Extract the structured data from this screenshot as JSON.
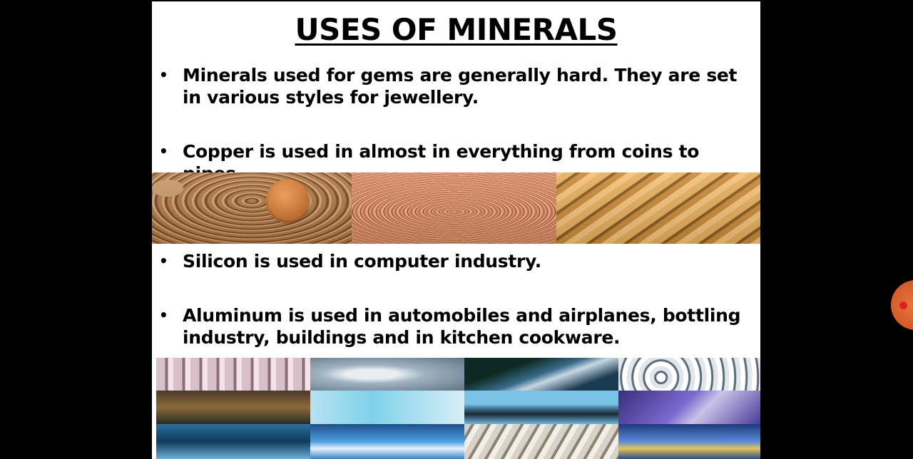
{
  "slide": {
    "title": "USES OF MINERALS",
    "bullets": [
      {
        "marker": "•",
        "text": "Minerals used for gems are generally hard. They are set in various styles for jewellery."
      },
      {
        "marker": "•",
        "text": "Copper is used in almost in everything from coins to pipes."
      },
      {
        "marker": "•",
        "text": "Silicon is used in computer industry."
      },
      {
        "marker": "•",
        "text": "Aluminum is used in automobiles and airplanes, bottling industry, buildings and in kitchen cookware."
      }
    ]
  },
  "copper_images": [
    "coins-photo",
    "copper-coil-photo",
    "copper-pipes-photo"
  ],
  "aluminum_collage": [
    "industrial-rollers-photo",
    "bicycle-frame-photo",
    "car-roof-photo",
    "clock-gears-photo",
    "factory-machinery-photo",
    "car-frame-photo",
    "car-side-photo",
    "radiator-grill-photo",
    "building-glass-roof-photo",
    "boat-photo",
    "aircraft-structure-photo",
    "electronics-board-photo"
  ],
  "colors": {
    "background": "#000000",
    "slide_background": "#ffffff",
    "text": "#000000",
    "record_button": "#e8743a"
  },
  "widgets": {
    "record_button_icon": "record-icon"
  }
}
